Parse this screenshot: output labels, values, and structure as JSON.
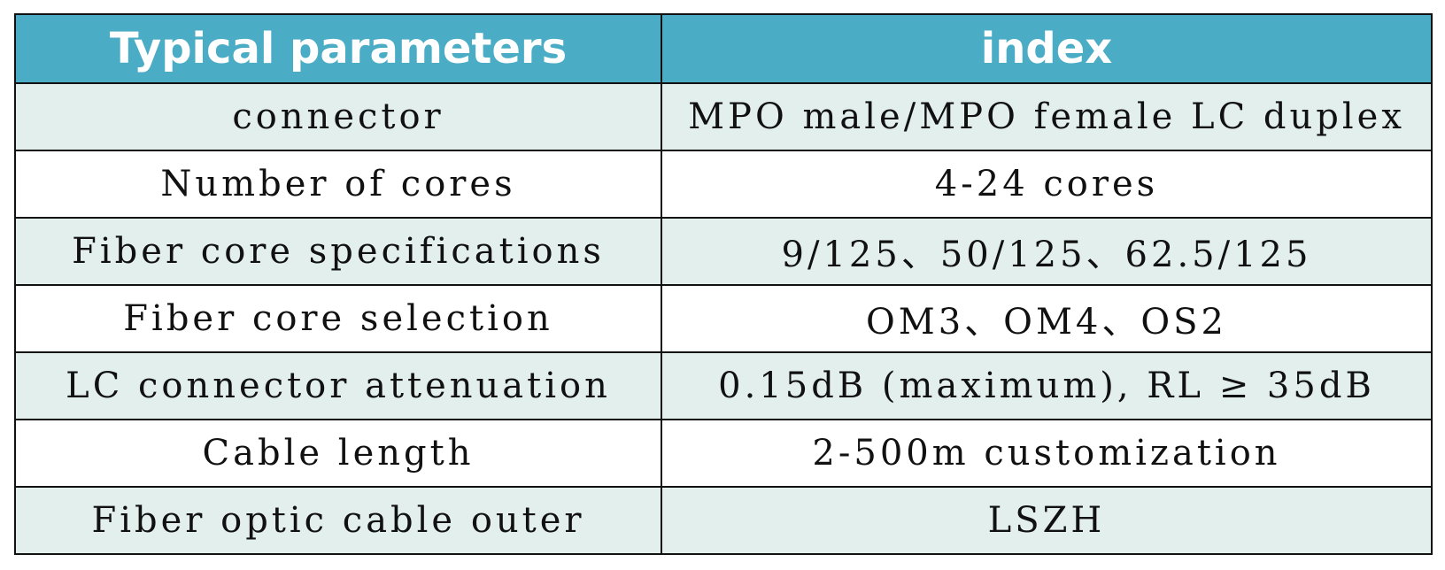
{
  "table": {
    "headers": [
      "Typical parameters",
      "index"
    ],
    "rows": [
      [
        "connector",
        "MPO male/MPO female LC duplex"
      ],
      [
        "Number of cores",
        "4-24 cores"
      ],
      [
        "Fiber core specifications",
        "9/125、50/125、62.5/125"
      ],
      [
        "Fiber core selection",
        "OM3、OM4、OS2"
      ],
      [
        "LC connector attenuation",
        "0.15dB (maximum), RL ≥ 35dB"
      ],
      [
        "Cable length",
        "2-500m customization"
      ],
      [
        "Fiber optic cable outer",
        "LSZH"
      ]
    ]
  },
  "colors": {
    "header_bg": "#4bacc6",
    "header_text": "#ffffff",
    "shaded_row_bg": "#e2efed",
    "plain_row_bg": "#ffffff",
    "border": "#111111"
  }
}
